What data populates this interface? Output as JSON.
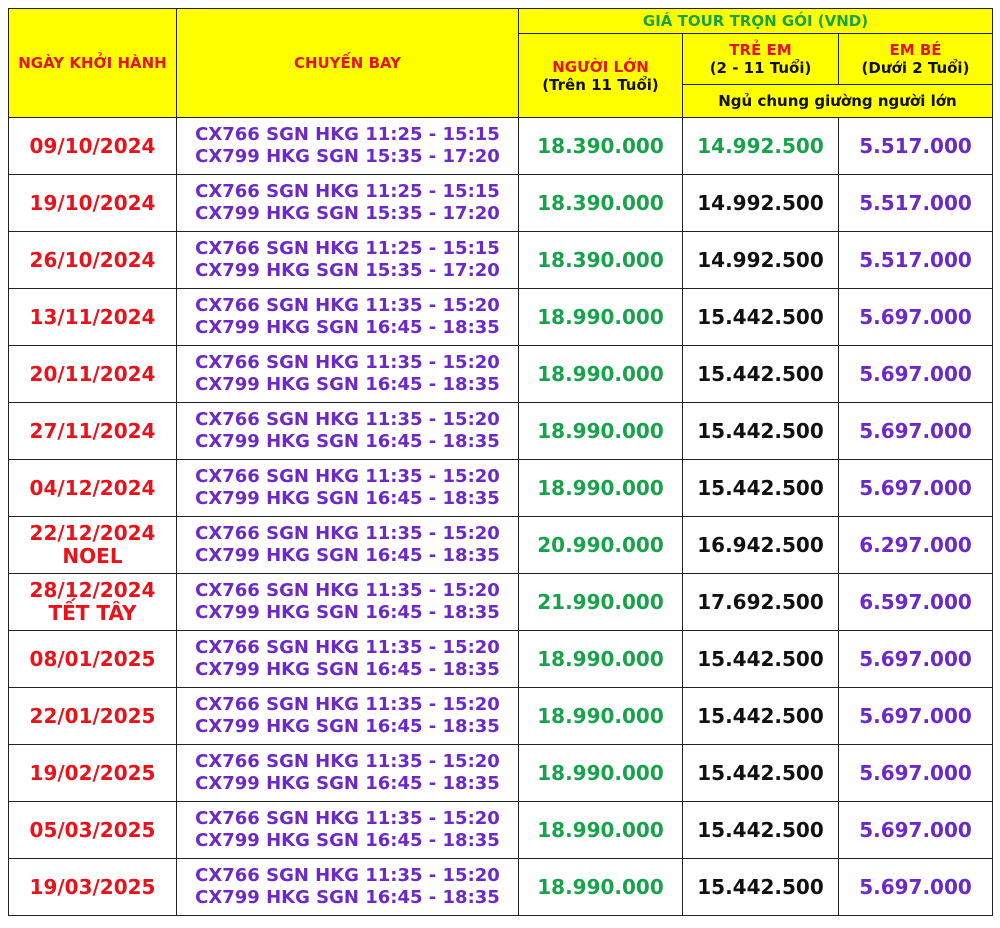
{
  "header": {
    "date_col": "NGÀY KHỞI HÀNH",
    "flight_col": "CHUYẾN BAY",
    "price_group": "GIÁ TOUR TRỌN GÓI (VND)",
    "adult_label": "NGƯỜI LỚN",
    "adult_sub": "(Trên 11 Tuổi)",
    "child_label": "TRẺ EM",
    "child_sub": "(2 - 11 Tuổi)",
    "infant_label": "EM BÉ",
    "infant_sub": "(Dưới 2 Tuổi)",
    "shared_bed_note": "Ngủ chung giường người lớn"
  },
  "rows": [
    {
      "date": "09/10/2024",
      "note": "",
      "flight1": "CX766 SGN HKG 11:25 - 15:15",
      "flight2": "CX799 HKG SGN 15:35 - 17:20",
      "adult": "18.390.000",
      "child": "14.992.500",
      "infant": "5.517.000"
    },
    {
      "date": "19/10/2024",
      "note": "",
      "flight1": "CX766 SGN HKG 11:25 - 15:15",
      "flight2": "CX799 HKG SGN 15:35 - 17:20",
      "adult": "18.390.000",
      "child": "14.992.500",
      "infant": "5.517.000"
    },
    {
      "date": "26/10/2024",
      "note": "",
      "flight1": "CX766 SGN HKG 11:25 - 15:15",
      "flight2": "CX799 HKG SGN 15:35 - 17:20",
      "adult": "18.390.000",
      "child": "14.992.500",
      "infant": "5.517.000"
    },
    {
      "date": "13/11/2024",
      "note": "",
      "flight1": "CX766 SGN HKG 11:35 - 15:20",
      "flight2": "CX799 HKG SGN 16:45 - 18:35",
      "adult": "18.990.000",
      "child": "15.442.500",
      "infant": "5.697.000"
    },
    {
      "date": "20/11/2024",
      "note": "",
      "flight1": "CX766 SGN HKG 11:35 - 15:20",
      "flight2": "CX799 HKG SGN 16:45 - 18:35",
      "adult": "18.990.000",
      "child": "15.442.500",
      "infant": "5.697.000"
    },
    {
      "date": "27/11/2024",
      "note": "",
      "flight1": "CX766 SGN HKG 11:35 - 15:20",
      "flight2": "CX799 HKG SGN 16:45 - 18:35",
      "adult": "18.990.000",
      "child": "15.442.500",
      "infant": "5.697.000"
    },
    {
      "date": "04/12/2024",
      "note": "",
      "flight1": "CX766 SGN HKG 11:35 - 15:20",
      "flight2": "CX799 HKG SGN 16:45 - 18:35",
      "adult": "18.990.000",
      "child": "15.442.500",
      "infant": "5.697.000"
    },
    {
      "date": "22/12/2024",
      "note": "NOEL",
      "flight1": "CX766 SGN HKG 11:35 - 15:20",
      "flight2": "CX799 HKG SGN 16:45 - 18:35",
      "adult": "20.990.000",
      "child": "16.942.500",
      "infant": "6.297.000"
    },
    {
      "date": "28/12/2024",
      "note": "TẾT TÂY",
      "flight1": "CX766 SGN HKG 11:35 - 15:20",
      "flight2": "CX799 HKG SGN 16:45 - 18:35",
      "adult": "21.990.000",
      "child": "17.692.500",
      "infant": "6.597.000"
    },
    {
      "date": "08/01/2025",
      "note": "",
      "flight1": "CX766 SGN HKG 11:35 - 15:20",
      "flight2": "CX799 HKG SGN 16:45 - 18:35",
      "adult": "18.990.000",
      "child": "15.442.500",
      "infant": "5.697.000"
    },
    {
      "date": "22/01/2025",
      "note": "",
      "flight1": "CX766 SGN HKG 11:35 - 15:20",
      "flight2": "CX799 HKG SGN 16:45 - 18:35",
      "adult": "18.990.000",
      "child": "15.442.500",
      "infant": "5.697.000"
    },
    {
      "date": "19/02/2025",
      "note": "",
      "flight1": "CX766 SGN HKG 11:35 - 15:20",
      "flight2": "CX799 HKG SGN 16:45 - 18:35",
      "adult": "18.990.000",
      "child": "15.442.500",
      "infant": "5.697.000"
    },
    {
      "date": "05/03/2025",
      "note": "",
      "flight1": "CX766 SGN HKG 11:35 - 15:20",
      "flight2": "CX799 HKG SGN 16:45 - 18:35",
      "adult": "18.990.000",
      "child": "15.442.500",
      "infant": "5.697.000"
    },
    {
      "date": "19/03/2025",
      "note": "",
      "flight1": "CX766 SGN HKG 11:35 - 15:20",
      "flight2": "CX799 HKG SGN 16:45 - 18:35",
      "adult": "18.990.000",
      "child": "15.442.500",
      "infant": "5.697.000"
    }
  ]
}
